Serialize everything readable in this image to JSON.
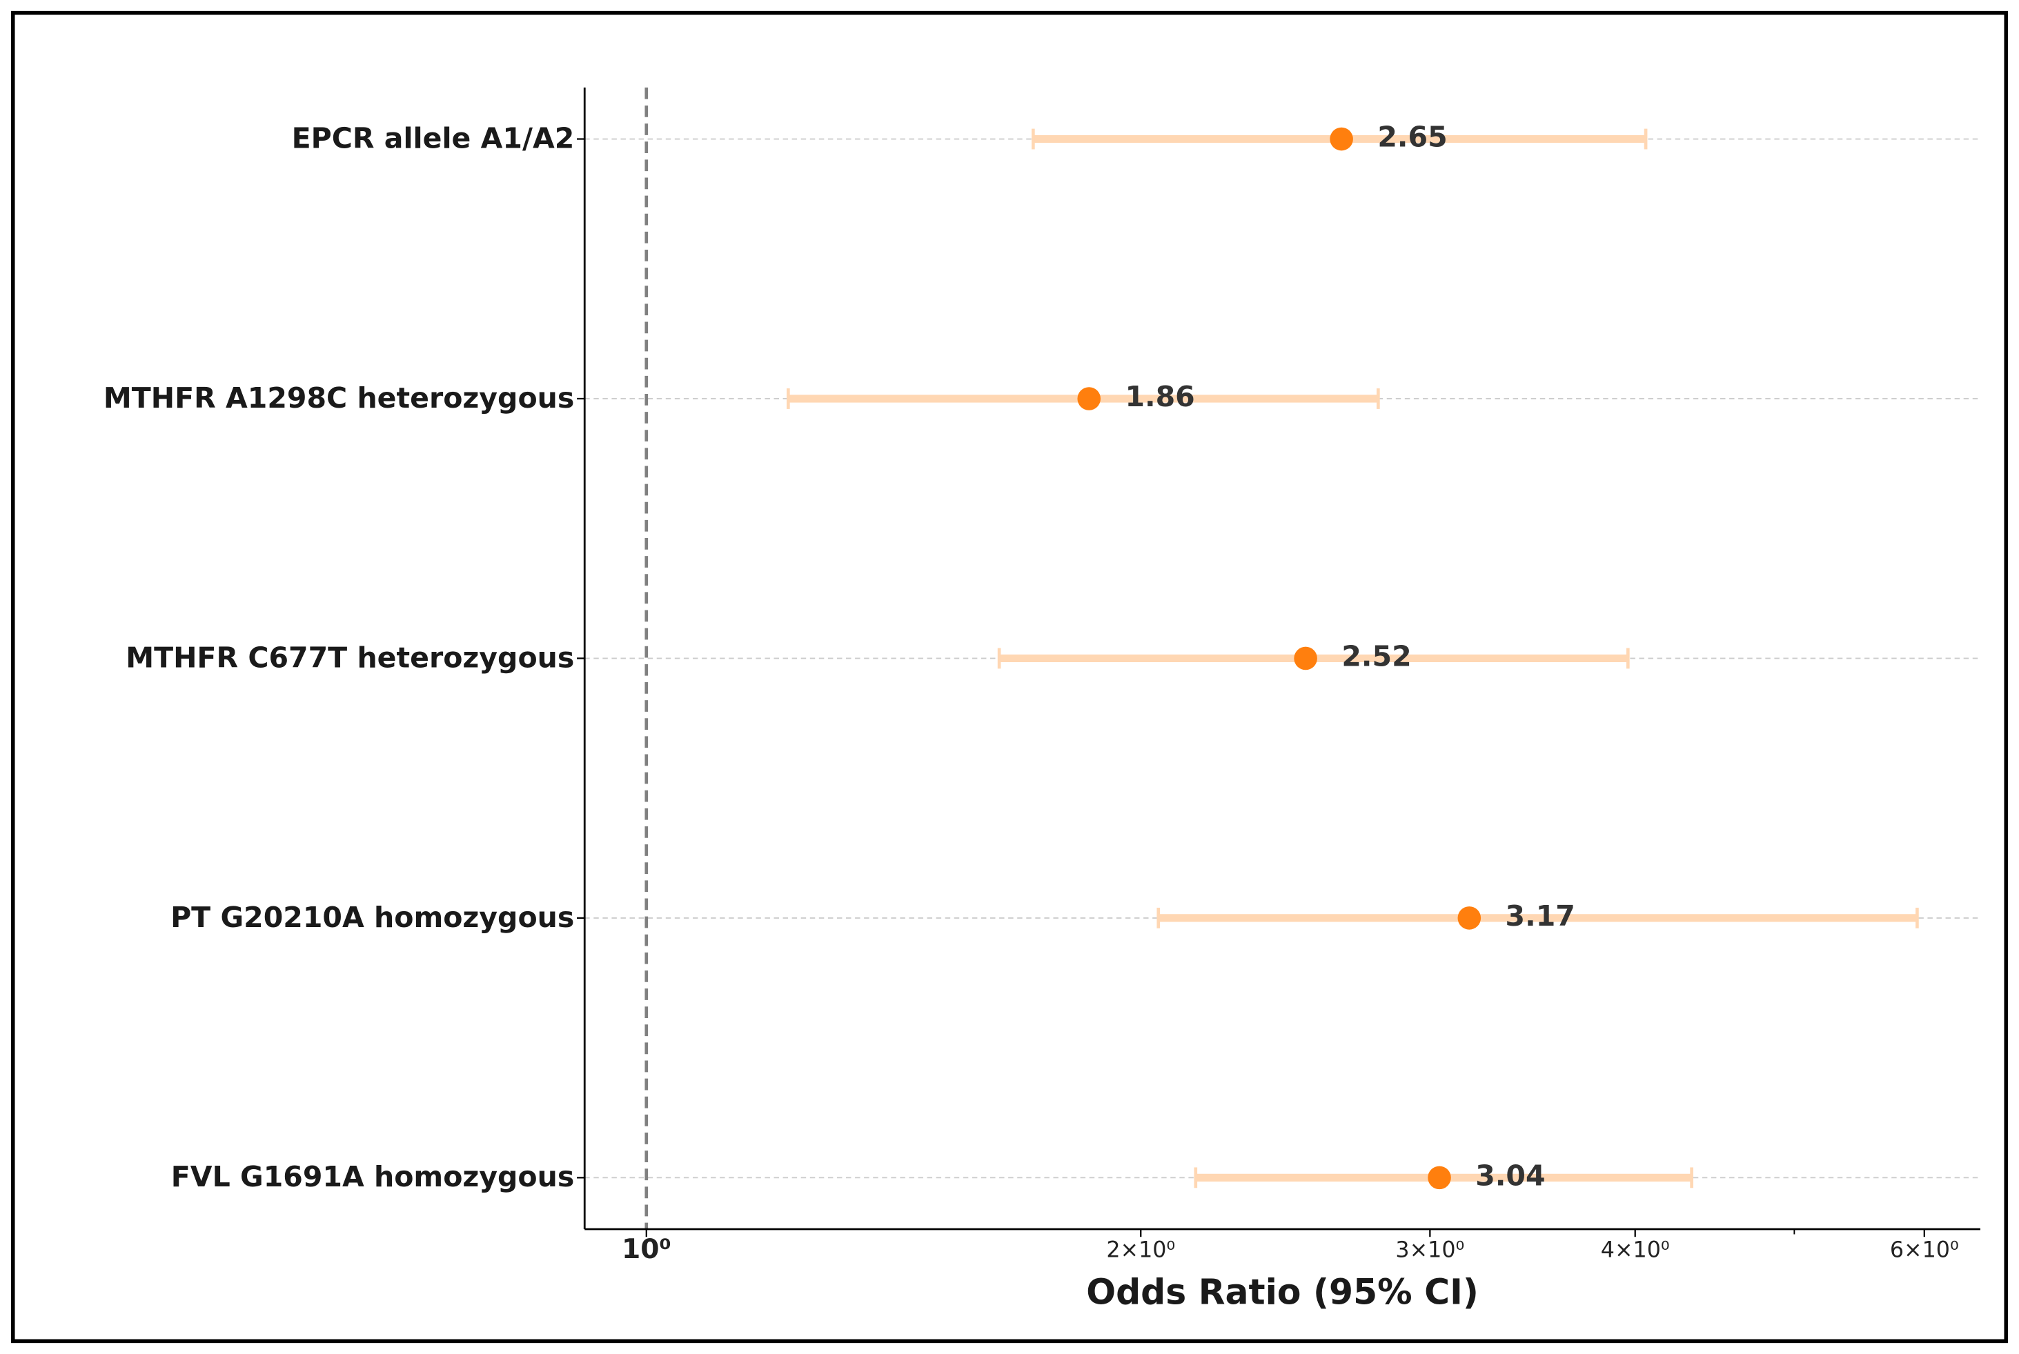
{
  "chart_data": {
    "type": "forest",
    "xlabel": "Odds Ratio (95% CI)",
    "categories": [
      "EPCR allele A1/A2",
      "MTHFR A1298C heterozygous",
      "MTHFR C677T heterozygous",
      "PT G20210A homozygous",
      "FVL G1691A homozygous"
    ],
    "values": [
      2.65,
      1.86,
      2.52,
      3.17,
      3.04
    ],
    "ci_low": [
      1.72,
      1.22,
      1.64,
      2.05,
      2.16
    ],
    "ci_high": [
      4.06,
      2.79,
      3.96,
      5.94,
      4.33
    ],
    "point_color": "#ff7f0e",
    "ci_color": "#ffd7b3",
    "xscale": "log",
    "xlim": [
      0.917,
      6.49
    ],
    "xticks": [
      {
        "value": 1,
        "label": "10⁰"
      },
      {
        "value": 2,
        "label": "2×10⁰"
      },
      {
        "value": 3,
        "label": "3×10⁰"
      },
      {
        "value": 4,
        "label": "4×10⁰"
      },
      {
        "value": 6,
        "label": "6×10⁰"
      }
    ],
    "xminor_ticks": [
      5
    ],
    "reference_line": 1,
    "grid": true
  }
}
